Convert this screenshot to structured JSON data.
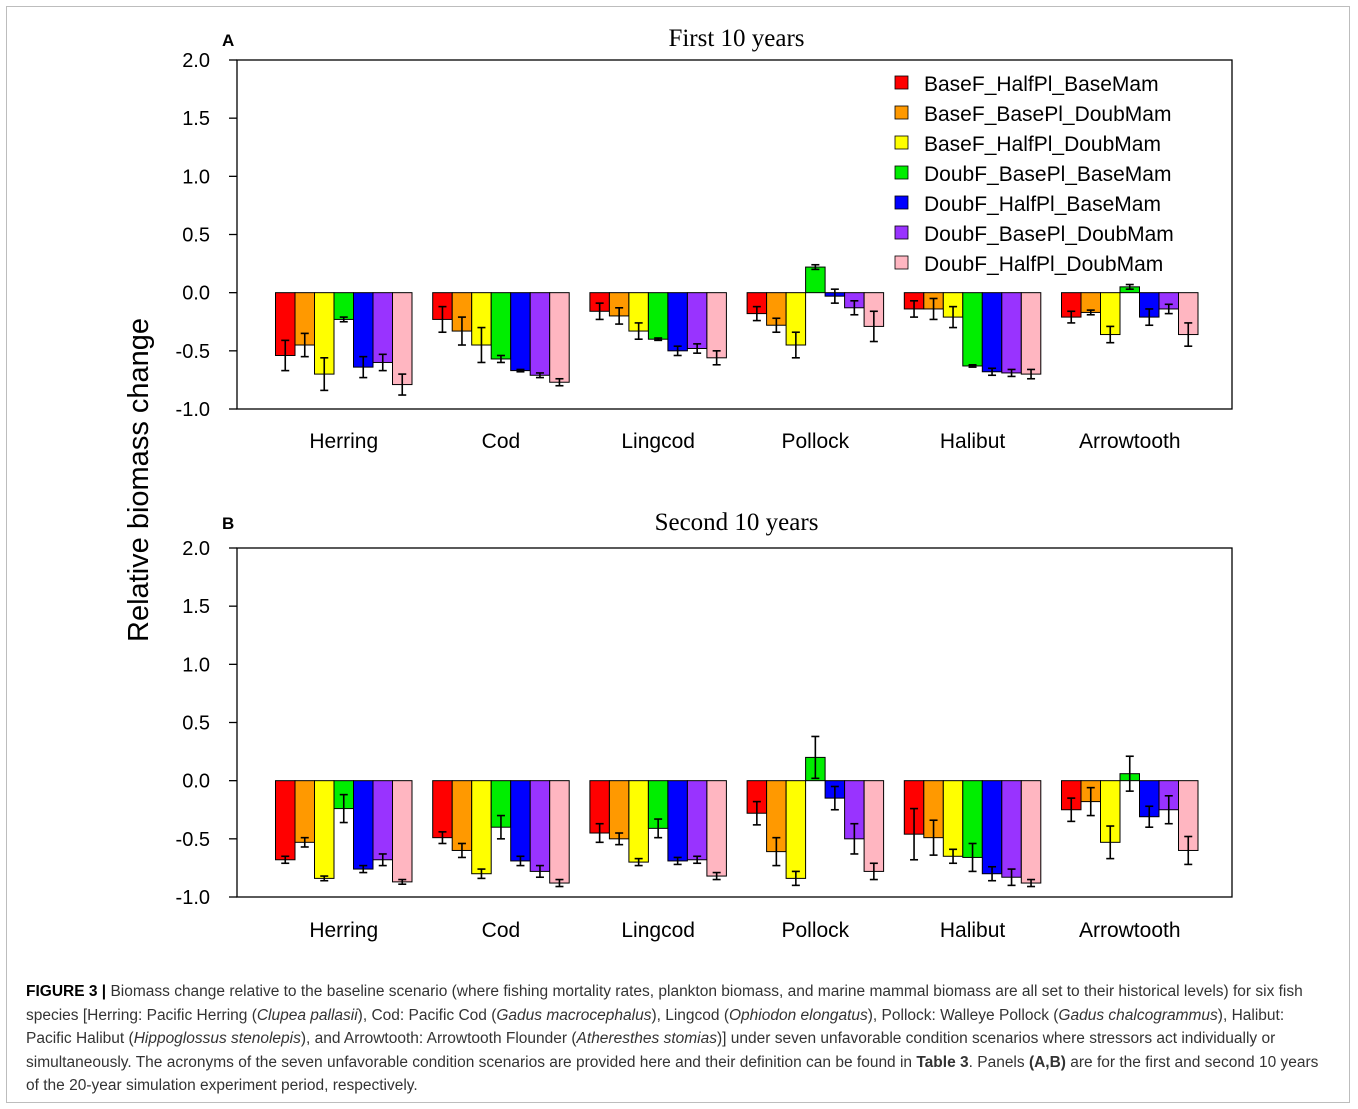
{
  "colors": {
    "series": [
      "#ff0000",
      "#ff9900",
      "#ffff00",
      "#00ee00",
      "#0000ff",
      "#9933ff",
      "#ffb6c1"
    ],
    "text": "#000000",
    "caption_text": "#333333"
  },
  "y_axis_label": "Relative biomass change",
  "chart_data": [
    {
      "type": "bar",
      "panel_label": "A",
      "title": "First 10 years",
      "xlabel": "",
      "ylabel": "Relative biomass change",
      "ylim": [
        -1.0,
        2.0
      ],
      "y_ticks": [
        "2.0",
        "1.5",
        "1.0",
        "0.5",
        "0.0",
        "-0.5",
        "-1.0"
      ],
      "y_tick_values": [
        2.0,
        1.5,
        1.0,
        0.5,
        0.0,
        -0.5,
        -1.0
      ],
      "legend_position": "top-right",
      "categories": [
        "Herring",
        "Cod",
        "Lingcod",
        "Pollock",
        "Halibut",
        "Arrowtooth"
      ],
      "series": [
        {
          "name": "BaseF_HalfPl_BaseMam",
          "values": [
            -0.54,
            -0.23,
            -0.16,
            -0.18,
            -0.14,
            -0.21
          ],
          "errors": [
            0.13,
            0.11,
            0.07,
            0.06,
            0.07,
            0.05
          ]
        },
        {
          "name": "BaseF_BasePl_DoubMam",
          "values": [
            -0.45,
            -0.33,
            -0.2,
            -0.28,
            -0.14,
            -0.17
          ],
          "errors": [
            0.1,
            0.12,
            0.07,
            0.06,
            0.09,
            0.02
          ]
        },
        {
          "name": "BaseF_HalfPl_DoubMam",
          "values": [
            -0.7,
            -0.45,
            -0.33,
            -0.45,
            -0.21,
            -0.36
          ],
          "errors": [
            0.14,
            0.15,
            0.07,
            0.11,
            0.09,
            0.07
          ]
        },
        {
          "name": "DoubF_BasePl_BaseMam",
          "values": [
            -0.23,
            -0.57,
            -0.4,
            0.22,
            -0.63,
            0.05
          ],
          "errors": [
            0.02,
            0.03,
            0.01,
            0.02,
            0.01,
            0.02
          ]
        },
        {
          "name": "DoubF_HalfPl_BaseMam",
          "values": [
            -0.64,
            -0.67,
            -0.5,
            -0.03,
            -0.68,
            -0.21
          ],
          "errors": [
            0.09,
            0.01,
            0.04,
            0.06,
            0.03,
            0.07
          ]
        },
        {
          "name": "DoubF_BasePl_DoubMam",
          "values": [
            -0.6,
            -0.71,
            -0.48,
            -0.13,
            -0.69,
            -0.14
          ],
          "errors": [
            0.07,
            0.02,
            0.04,
            0.06,
            0.03,
            0.04
          ]
        },
        {
          "name": "DoubF_HalfPl_DoubMam",
          "values": [
            -0.79,
            -0.77,
            -0.56,
            -0.29,
            -0.7,
            -0.36
          ],
          "errors": [
            0.09,
            0.03,
            0.06,
            0.13,
            0.04,
            0.1
          ]
        }
      ]
    },
    {
      "type": "bar",
      "panel_label": "B",
      "title": "Second 10 years",
      "xlabel": "",
      "ylabel": "Relative biomass change",
      "ylim": [
        -1.0,
        2.0
      ],
      "y_ticks": [
        "2.0",
        "1.5",
        "1.0",
        "0.5",
        "0.0",
        "-0.5",
        "-1.0"
      ],
      "y_tick_values": [
        2.0,
        1.5,
        1.0,
        0.5,
        0.0,
        -0.5,
        -1.0
      ],
      "categories": [
        "Herring",
        "Cod",
        "Lingcod",
        "Pollock",
        "Halibut",
        "Arrowtooth"
      ],
      "series": [
        {
          "name": "BaseF_HalfPl_BaseMam",
          "values": [
            -0.68,
            -0.49,
            -0.45,
            -0.28,
            -0.46,
            -0.25
          ],
          "errors": [
            0.03,
            0.05,
            0.08,
            0.1,
            0.22,
            0.1
          ]
        },
        {
          "name": "BaseF_BasePl_DoubMam",
          "values": [
            -0.53,
            -0.6,
            -0.5,
            -0.61,
            -0.49,
            -0.18
          ],
          "errors": [
            0.04,
            0.06,
            0.05,
            0.12,
            0.15,
            0.12
          ]
        },
        {
          "name": "BaseF_HalfPl_DoubMam",
          "values": [
            -0.84,
            -0.8,
            -0.7,
            -0.84,
            -0.65,
            -0.53
          ],
          "errors": [
            0.02,
            0.04,
            0.03,
            0.06,
            0.06,
            0.14
          ]
        },
        {
          "name": "DoubF_BasePl_BaseMam",
          "values": [
            -0.24,
            -0.4,
            -0.41,
            0.2,
            -0.66,
            0.06
          ],
          "errors": [
            0.12,
            0.1,
            0.08,
            0.18,
            0.12,
            0.15
          ]
        },
        {
          "name": "DoubF_HalfPl_BaseMam",
          "values": [
            -0.76,
            -0.69,
            -0.69,
            -0.15,
            -0.8,
            -0.31
          ],
          "errors": [
            0.03,
            0.04,
            0.03,
            0.1,
            0.06,
            0.09
          ]
        },
        {
          "name": "DoubF_BasePl_DoubMam",
          "values": [
            -0.68,
            -0.78,
            -0.68,
            -0.5,
            -0.83,
            -0.25
          ],
          "errors": [
            0.05,
            0.05,
            0.03,
            0.13,
            0.07,
            0.12
          ]
        },
        {
          "name": "DoubF_HalfPl_DoubMam",
          "values": [
            -0.87,
            -0.88,
            -0.82,
            -0.78,
            -0.88,
            -0.6
          ],
          "errors": [
            0.02,
            0.03,
            0.03,
            0.07,
            0.03,
            0.12
          ]
        }
      ]
    }
  ],
  "caption": {
    "figure_label": "FIGURE 3 |",
    "parts": [
      " Biomass change relative to the baseline scenario (where fishing mortality rates, plankton biomass, and marine mammal biomass are all set to their historical levels) for six fish species [Herring: Pacific Herring (",
      "Clupea pallasii",
      "), Cod: Pacific Cod (",
      "Gadus macrocephalus",
      "), Lingcod (",
      "Ophiodon elongatus",
      "), Pollock: Walleye Pollock (",
      "Gadus chalcogrammus",
      "), Halibut: Pacific Halibut (",
      "Hippoglossus stenolepis",
      "), and Arrowtooth: Arrowtooth Flounder (",
      "Atheresthes stomias",
      ")] under seven unfavorable condition scenarios where stressors act individually or simultaneously. The acronyms of the seven unfavorable condition scenarios are provided here and their definition can be found in ",
      "Table 3",
      ". Panels ",
      "(A,B)",
      " are for the first and second 10 years of the 20-year simulation experiment period, respectively."
    ]
  }
}
